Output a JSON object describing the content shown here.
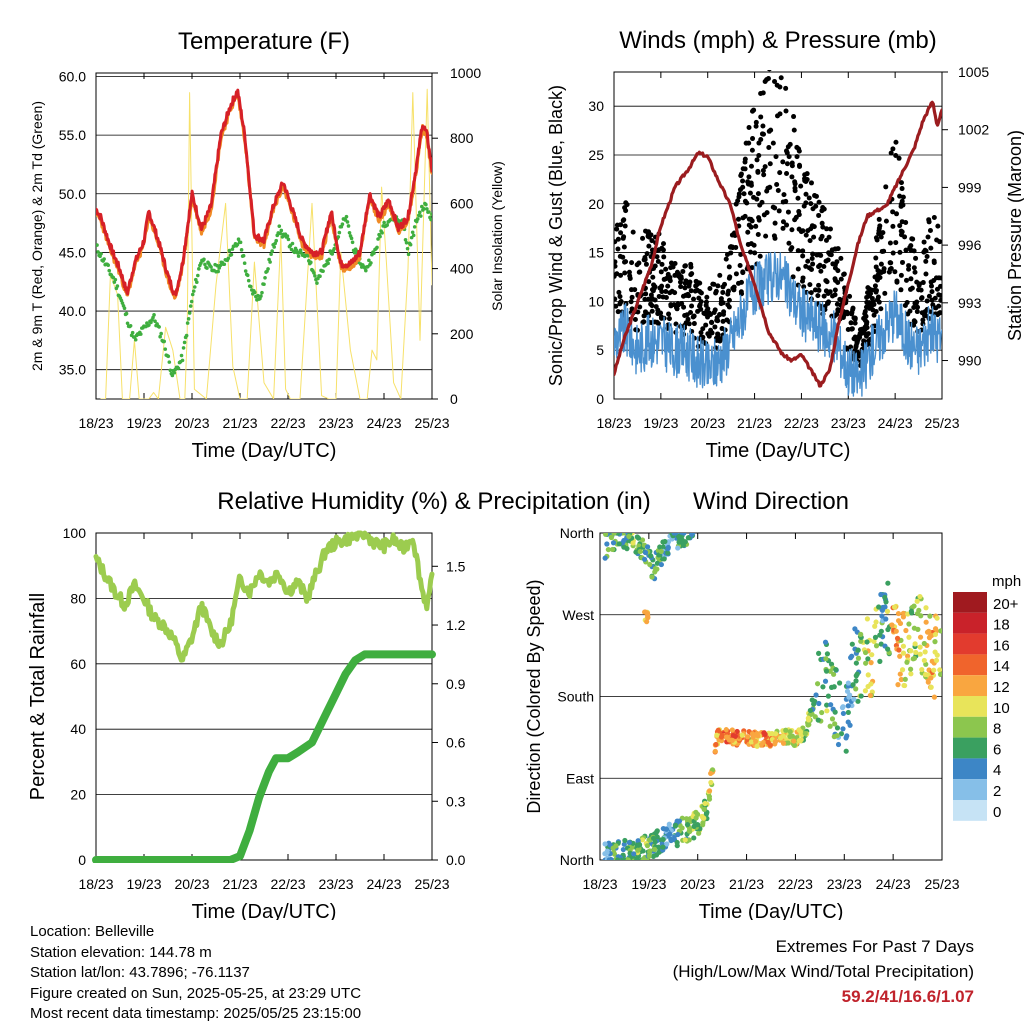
{
  "footer": {
    "location": "Location: Belleville",
    "elevation": "Station elevation: 144.78 m",
    "latlon": "Station lat/lon: 43.7896; -76.1137",
    "created": "Figure created on Sun, 2025-05-25, at 23:29 UTC",
    "recent": "Most recent data timestamp: 2025/05/25 23:15:00"
  },
  "extremes": {
    "title": "Extremes For Past 7 Days",
    "subtitle": "(High/Low/Max Wind/Total Precipitation)",
    "value": "59.2/41/16.6/1.07"
  },
  "colors": {
    "temp2m": "#d62027",
    "temp9m": "#f08a24",
    "dewpoint": "#3fae3f",
    "solar": "#f7e16a",
    "rh": "#9ccc4f",
    "precip": "#3fae3f",
    "gust": "#000000",
    "wind": "#4a90cf",
    "pressure": "#9b1c1f"
  },
  "chart_data": [
    {
      "type": "line",
      "title": "Temperature (F)",
      "xlabel": "Time (Day/UTC)",
      "ylabel": "2m & 9m T (Red, Orange) & 2m Td (Green)",
      "y2label": "Solar Insolation (Yellow)",
      "xticks": [
        "18/23",
        "19/23",
        "20/23",
        "21/23",
        "22/23",
        "23/23",
        "24/23",
        "25/23"
      ],
      "yticks": [
        "35.0",
        "40.0",
        "45.0",
        "50.0",
        "55.0",
        "60.0"
      ],
      "y2ticks": [
        "0",
        "200",
        "400",
        "600",
        "800",
        "1000"
      ],
      "xlim": [
        0,
        7
      ],
      "ylim": [
        32.5,
        60.3
      ],
      "y2lim": [
        0,
        1000
      ],
      "grid": true,
      "series": [
        {
          "key": "temp",
          "x": [
            0,
            0.1,
            0.3,
            0.5,
            0.65,
            0.8,
            1.0,
            1.1,
            1.3,
            1.5,
            1.65,
            1.8,
            2.0,
            2.2,
            2.4,
            2.6,
            2.8,
            2.95,
            3.1,
            3.3,
            3.5,
            3.7,
            3.9,
            4.1,
            4.3,
            4.5,
            4.7,
            4.9,
            5.1,
            5.3,
            5.5,
            5.7,
            5.9,
            6.1,
            6.3,
            6.5,
            6.7,
            6.8,
            6.9,
            7.0
          ],
          "y": [
            48.7,
            48,
            45.5,
            43.5,
            41.5,
            44,
            46,
            48.5,
            46,
            43,
            41.3,
            44,
            50,
            47,
            49,
            55,
            57.5,
            58.8,
            55,
            46.5,
            46,
            49,
            51,
            48.5,
            46,
            45,
            45,
            48.5,
            44,
            44,
            45,
            50,
            48,
            49.5,
            47,
            48,
            53,
            56,
            55,
            52
          ]
        },
        {
          "key": "dewpoint",
          "x": [
            0,
            0.2,
            0.4,
            0.6,
            0.8,
            1.0,
            1.2,
            1.4,
            1.6,
            1.8,
            2.0,
            2.2,
            2.4,
            2.6,
            2.8,
            3.0,
            3.2,
            3.4,
            3.6,
            3.8,
            4.0,
            4.2,
            4.4,
            4.6,
            4.8,
            5.0,
            5.2,
            5.4,
            5.6,
            5.8,
            6.0,
            6.2,
            6.4,
            6.5,
            6.7,
            6.85,
            7.0
          ],
          "y": [
            45.5,
            44,
            42.5,
            40,
            37.5,
            38.5,
            39.5,
            37.5,
            34.5,
            36,
            41,
            44.5,
            43.5,
            43.8,
            45,
            46,
            42,
            41,
            44,
            47,
            46,
            44.8,
            45,
            42.5,
            44,
            46,
            48,
            45,
            43.5,
            45,
            47.5,
            48,
            47.5,
            45,
            48,
            49,
            48
          ]
        },
        {
          "key": "solar",
          "x": [
            0.1,
            0.2,
            0.3,
            0.45,
            0.55,
            0.7,
            0.8,
            0.9,
            1.0,
            1.1,
            1.2,
            1.3,
            1.45,
            1.6,
            1.75,
            1.85,
            1.9,
            1.95,
            2.05,
            2.3,
            2.5,
            2.7,
            2.85,
            3.0,
            3.15,
            3.3,
            3.5,
            3.7,
            3.85,
            3.95,
            4.05,
            4.25,
            4.5,
            4.7,
            4.85,
            5.0,
            5.1,
            5.3,
            5.5,
            5.65,
            5.75,
            5.85,
            5.95,
            6.05,
            6.2,
            6.35,
            6.5,
            6.6,
            6.75,
            6.9,
            7.0
          ],
          "y": [
            0,
            0,
            380,
            320,
            0,
            0,
            180,
            0,
            0,
            0,
            20,
            0,
            220,
            150,
            0,
            0,
            200,
            940,
            30,
            0,
            350,
            600,
            100,
            0,
            0,
            420,
            50,
            0,
            500,
            30,
            0,
            0,
            600,
            10,
            0,
            0,
            450,
            150,
            0,
            0,
            150,
            120,
            650,
            420,
            50,
            0,
            400,
            940,
            180,
            950,
            350
          ]
        }
      ]
    },
    {
      "type": "scatter",
      "title": "Winds (mph) & Pressure (mb)",
      "xlabel": "Time (Day/UTC)",
      "ylabel": "Sonic/Prop Wind & Gust (Blue, Black)",
      "y2label": "Station Pressure (Maroon)",
      "xticks": [
        "18/23",
        "19/23",
        "20/23",
        "21/23",
        "22/23",
        "23/23",
        "24/23",
        "25/23"
      ],
      "yticks": [
        "0",
        "5",
        "10",
        "15",
        "20",
        "25",
        "30"
      ],
      "y2ticks": [
        "990",
        "993",
        "996",
        "999",
        "1002",
        "1005"
      ],
      "xlim": [
        0,
        7
      ],
      "ylim": [
        0,
        33.5
      ],
      "y2lim": [
        988,
        1005
      ],
      "grid": true,
      "series": [
        {
          "key": "pressure",
          "x": [
            0,
            0.2,
            0.5,
            0.8,
            1.0,
            1.3,
            1.6,
            1.8,
            2.0,
            2.2,
            2.5,
            2.7,
            3.0,
            3.3,
            3.6,
            3.8,
            4.0,
            4.2,
            4.4,
            4.6,
            4.8,
            5.0,
            5.2,
            5.4,
            5.6,
            5.8,
            6.0,
            6.2,
            6.4,
            6.6,
            6.8,
            6.9,
            7.0
          ],
          "y": [
            989.3,
            991,
            993,
            995,
            997,
            999,
            1000,
            1000.8,
            1000.6,
            999.5,
            998,
            996,
            994,
            991.5,
            990.3,
            990,
            990.3,
            989.5,
            988.7,
            989.5,
            992,
            994,
            996,
            997.5,
            997.8,
            998,
            999,
            1000,
            1001,
            1002.5,
            1003.5,
            1002.2,
            1003
          ]
        },
        {
          "key": "gust",
          "x": [
            0,
            0.25,
            0.5,
            0.75,
            1.0,
            1.25,
            1.5,
            1.75,
            2.0,
            2.25,
            2.5,
            2.75,
            3.0,
            3.25,
            3.5,
            3.75,
            4.0,
            4.25,
            4.5,
            4.75,
            5.0,
            5.25,
            5.5,
            5.75,
            6.0,
            6.25,
            6.5,
            6.75,
            7.0
          ],
          "y": [
            12,
            15,
            11,
            13,
            12,
            10,
            11,
            9,
            8,
            9,
            12,
            18,
            22,
            25,
            27,
            22,
            18,
            16,
            14,
            12,
            8,
            5,
            10,
            15,
            20,
            14,
            10,
            14,
            12
          ]
        },
        {
          "key": "wind",
          "x": [
            0,
            0.25,
            0.5,
            0.75,
            1.0,
            1.25,
            1.5,
            1.75,
            2.0,
            2.25,
            2.5,
            2.75,
            3.0,
            3.25,
            3.5,
            3.75,
            4.0,
            4.25,
            4.5,
            4.75,
            5.0,
            5.25,
            5.5,
            5.75,
            6.0,
            6.25,
            6.5,
            6.75,
            7.0
          ],
          "y": [
            6,
            7,
            5,
            6,
            6,
            5,
            5,
            4,
            3,
            4,
            6,
            9,
            11,
            12,
            13,
            11,
            9,
            8,
            7,
            6,
            3,
            2,
            5,
            7,
            9,
            6,
            5,
            7,
            6
          ]
        }
      ]
    },
    {
      "type": "line",
      "title": "Relative Humidity (%) & Precipitation (in)",
      "xlabel": "Time (Day/UTC)",
      "ylabel": "Percent & Total Rainfall",
      "xticks": [
        "18/23",
        "19/23",
        "20/23",
        "21/23",
        "22/23",
        "23/23",
        "24/23",
        "25/23"
      ],
      "yticks": [
        "0",
        "20",
        "40",
        "60",
        "80",
        "100"
      ],
      "y2ticks": [
        "0.0",
        "0.3",
        "0.6",
        "0.9",
        "1.2",
        "1.5"
      ],
      "xlim": [
        0,
        7
      ],
      "ylim": [
        0,
        100
      ],
      "y2lim": [
        0,
        1.67
      ],
      "grid": true,
      "series": [
        {
          "key": "rh",
          "x": [
            0,
            0.2,
            0.4,
            0.6,
            0.8,
            1.0,
            1.2,
            1.4,
            1.6,
            1.8,
            2.0,
            2.2,
            2.4,
            2.6,
            2.8,
            3.0,
            3.2,
            3.4,
            3.6,
            3.8,
            4.0,
            4.2,
            4.4,
            4.6,
            4.8,
            5.0,
            5.2,
            5.4,
            5.6,
            5.8,
            6.0,
            6.2,
            6.4,
            6.6,
            6.8,
            6.9,
            7.0
          ],
          "y": [
            92,
            87,
            82,
            78,
            84,
            80,
            74,
            72,
            68,
            61,
            68,
            78,
            70,
            66,
            72,
            86,
            82,
            88,
            85,
            88,
            82,
            85,
            80,
            88,
            95,
            97,
            98,
            99,
            100,
            97,
            96,
            98,
            95,
            99,
            82,
            78,
            86
          ]
        },
        {
          "key": "precip",
          "x": [
            0,
            0.5,
            1.0,
            1.5,
            2.0,
            2.5,
            2.8,
            3.0,
            3.2,
            3.4,
            3.6,
            3.75,
            4.0,
            4.2,
            4.5,
            4.8,
            5.0,
            5.2,
            5.4,
            5.6,
            5.9,
            6.2,
            6.5,
            7.0
          ],
          "y": [
            0,
            0,
            0,
            0,
            0,
            0,
            0,
            0.02,
            0.15,
            0.32,
            0.45,
            0.52,
            0.52,
            0.55,
            0.6,
            0.75,
            0.85,
            0.95,
            1.02,
            1.05,
            1.05,
            1.05,
            1.05,
            1.05
          ]
        }
      ]
    },
    {
      "type": "scatter",
      "title": "Wind Direction",
      "xlabel": "Time (Day/UTC)",
      "ylabel": "Direction (Colored By Speed)",
      "xticks": [
        "18/23",
        "19/23",
        "20/23",
        "21/23",
        "22/23",
        "23/23",
        "24/23",
        "25/23"
      ],
      "yticks": [
        "North",
        "East",
        "South",
        "West",
        "North"
      ],
      "xlim": [
        0,
        7
      ],
      "ylim": [
        0,
        360
      ],
      "legend_title": "mph",
      "legend_labels": [
        "20+",
        "18",
        "16",
        "14",
        "12",
        "10",
        "8",
        "6",
        "4",
        "2",
        "0"
      ],
      "legend_colors": [
        "#a01a1f",
        "#c9222a",
        "#e23b2e",
        "#f0642c",
        "#f9a640",
        "#e8e45a",
        "#8cc64e",
        "#3aa060",
        "#3d86c6",
        "#86bfe8",
        "#c6e3f5"
      ],
      "series": [
        {
          "key": "direction",
          "x": [
            0.1,
            0.3,
            0.5,
            0.7,
            0.9,
            1.0,
            1.2,
            1.4,
            1.6,
            1.8,
            2.0,
            2.2,
            2.4,
            2.6,
            2.8,
            3.0,
            3.2,
            3.4,
            3.6,
            3.8,
            4.0,
            4.2,
            4.4,
            4.6,
            4.8,
            5.0,
            5.2,
            5.4,
            5.6,
            5.8,
            6.0,
            6.2,
            6.4,
            6.6,
            6.8,
            7.0
          ],
          "y": [
            5,
            5,
            8,
            10,
            12,
            15,
            20,
            25,
            30,
            35,
            40,
            60,
            135,
            138,
            134,
            135,
            133,
            132,
            135,
            136,
            134,
            140,
            180,
            200,
            175,
            150,
            210,
            230,
            220,
            280,
            240,
            230,
            250,
            245,
            220,
            235
          ],
          "speed": [
            4,
            6,
            5,
            7,
            8,
            6,
            5,
            4,
            6,
            7,
            8,
            9,
            12,
            14,
            13,
            11,
            12,
            13,
            11,
            10,
            9,
            8,
            6,
            7,
            6,
            3,
            5,
            8,
            10,
            4,
            12,
            10,
            8,
            9,
            11,
            8
          ]
        },
        {
          "key": "direction_early",
          "x": [
            0.1,
            0.3,
            0.5,
            0.7,
            0.9,
            1.1,
            1.3,
            1.5,
            1.7,
            1.9
          ],
          "y": [
            345,
            355,
            358,
            350,
            345,
            320,
            340,
            355,
            358,
            358
          ],
          "speed": [
            6,
            7,
            5,
            8,
            6,
            7,
            5,
            4,
            6,
            5
          ]
        },
        {
          "key": "direction_west",
          "x": [
            0.95
          ],
          "y": [
            270
          ],
          "speed": [
            12
          ]
        }
      ]
    }
  ]
}
